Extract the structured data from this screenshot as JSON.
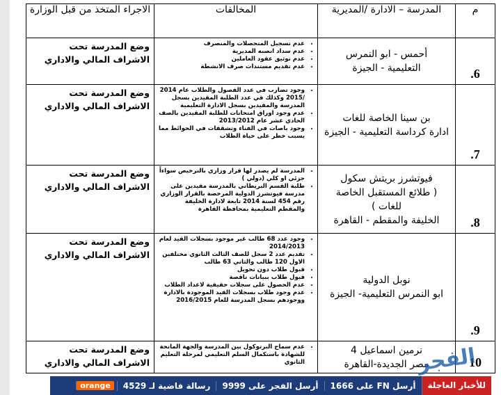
{
  "table": {
    "header": [
      "م",
      "المدرسة – الادارة /المديرية",
      "المخالفات",
      "الاجراء المتخذ من قبل الوزارة"
    ],
    "rows": [
      {
        "number": "6.",
        "school": [
          "أحمس - ابو النمرس",
          "التعليمية - الجيزة"
        ],
        "violations": [
          "عدم تسجيل المتحصلات والمنصرف",
          "عدم سداد انصبه المديرية",
          "عدم توثيق عقود العاملين",
          "عدم تقديم مستندات صرف الانشطة"
        ],
        "action": "وضع المدرسة تحت الاشراف المالي والاداري"
      },
      {
        "number": "7.",
        "school": [
          "بن سينا الخاصة للغات",
          "ادارة كرداسة التعليمية - الجيزة"
        ],
        "violations": [
          "وجود تضارب في عدد الفصول والطلاب عام 2014 /2015 وكذلك في عدد الطلبة المقيدين بسجل المدرسة والمقيدين بسجل الادارة التعليمية",
          "عدم وجود اوراق امتحانات للطلبة المقيدين بالصف الحادي عشر عام 2013/2012",
          "وجود باصات في الفناء وتشققات في الحوائط مما يسبب خطر على حياة الطلاب"
        ],
        "action": "وضع المدرسة تحت الاشراف المالي والاداري"
      },
      {
        "number": "8.",
        "school": [
          "فيوتشرز بريتش سكول",
          "( طلائع المستقبل الخاصة",
          "للغات )",
          "الخليفة والمقطم - القاهرة"
        ],
        "violations": [
          "المدرسة لم يصدر لها قرار وزاري بالترخيص سواءاً جزئي او كلي (دولي )",
          "طلبة القسم البريطاني بالمدرسة مقيدين على مدرسة فيوتشرز الدولية المرخصة بالقرار الوزاري رقم 454 لسنة 2014 تابعة لادارة الخليفة والمقطم التعليمية بمحافظة القاهرة"
        ],
        "action": "وضع المدرسة تحت الاشراف المالي والاداري"
      },
      {
        "number": "9.",
        "school": [
          "نوبل الدولية",
          "ابو النمرس التعليمية- الجيزة"
        ],
        "violations": [
          "وجود عدد 68 طالب غير موجود بسجلات القيد لعام 2014/2013",
          "تقديم عدد 2 سجل للصف الثالث الثانوي مختلفين الاول 120 طالب والثاني 63 طالب",
          "قبول طلاب دون تحويل",
          "قبول طلاب ببيانات ناقصة",
          "عدم الحصول على سجلات حقيقية لاعداد الطلاب",
          "عدم وجود طلاب بسجلات القيد الموجودة بالادارة ووجودهم بسجل المدرسة للعام 2016/2015"
        ],
        "action": "وضع المدرسة تحت الاشراف المالي والاداري"
      },
      {
        "number": "10",
        "school": [
          "نرمين اسماعيل 4",
          "مصر الجديدة-القاهرة"
        ],
        "violations": [
          "عدم سماح البرتوكول بين المدرسة والجهة المانحة للشهادة باستكمال السلم التعليمي لمرحلة التعليم الثانوي"
        ],
        "action": "وضع المدرسة تحت الاشراف المالي والاداري"
      }
    ]
  },
  "ticker": {
    "label": "للأخبار العاجلة",
    "items": [
      "أرسل FN على 1666",
      "أرسل الفجر على 9999",
      "رسالة فاضية لـ 4529"
    ],
    "brand": "orange"
  },
  "watermark": "الفجر"
}
